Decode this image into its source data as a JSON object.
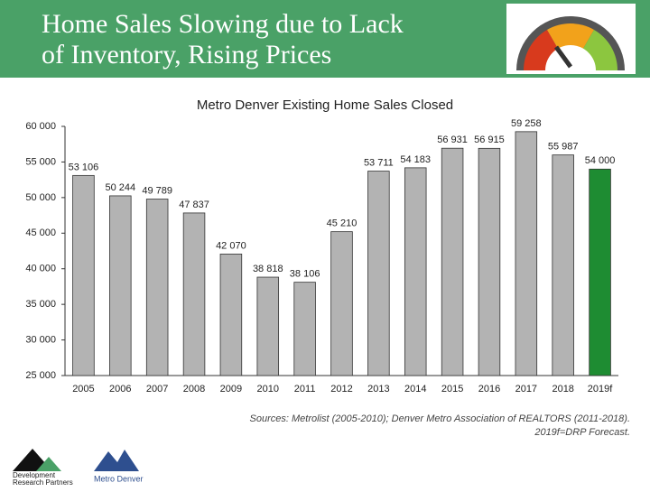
{
  "slide": {
    "title_lines": [
      "Home Sales Slowing due to Lack",
      "of Inventory, Rising Prices"
    ],
    "sources": [
      "Sources: Metrolist (2005-2010); Denver Metro Association of REALTORS (2011-2018).",
      "2019f=DRP Forecast."
    ],
    "logos": [
      "Development",
      "Research Partners",
      "Metro Denver"
    ]
  },
  "chart_data": {
    "type": "bar",
    "title": "Metro Denver Existing Home Sales Closed",
    "categories": [
      "2005",
      "2006",
      "2007",
      "2008",
      "2009",
      "2010",
      "2011",
      "2012",
      "2013",
      "2014",
      "2015",
      "2016",
      "2017",
      "2018",
      "2019f"
    ],
    "values": [
      53106,
      50244,
      49789,
      47837,
      42070,
      38818,
      38106,
      45210,
      53711,
      54183,
      56931,
      56915,
      59258,
      55987,
      54000
    ],
    "value_labels": [
      "53 106",
      "50 244",
      "49 789",
      "47 837",
      "42 070",
      "38 818",
      "38 106",
      "45 210",
      "53 711",
      "54 183",
      "56 931",
      "56 915",
      "59 258",
      "55 987",
      "54 000"
    ],
    "colors": [
      "#b3b3b3",
      "#b3b3b3",
      "#b3b3b3",
      "#b3b3b3",
      "#b3b3b3",
      "#b3b3b3",
      "#b3b3b3",
      "#b3b3b3",
      "#b3b3b3",
      "#b3b3b3",
      "#b3b3b3",
      "#b3b3b3",
      "#b3b3b3",
      "#b3b3b3",
      "#1e8c32"
    ],
    "ylim": [
      25000,
      60000
    ],
    "yticks": [
      {
        "value": 25000,
        "label": "25 000"
      },
      {
        "value": 30000,
        "label": "30 000"
      },
      {
        "value": 35000,
        "label": "35 000"
      },
      {
        "value": 40000,
        "label": "40 000"
      },
      {
        "value": 45000,
        "label": "45 000"
      },
      {
        "value": 50000,
        "label": "50 000"
      },
      {
        "value": 55000,
        "label": "55 000"
      },
      {
        "value": 60000,
        "label": "60 000"
      }
    ],
    "grid": false
  }
}
